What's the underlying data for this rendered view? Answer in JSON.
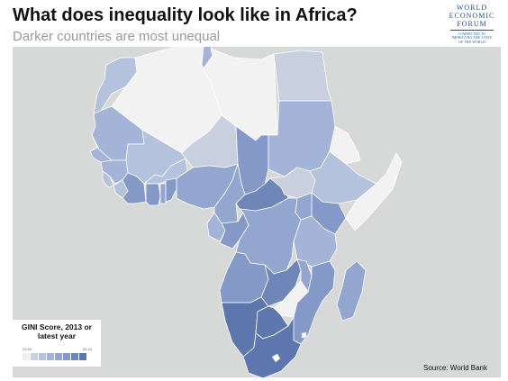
{
  "header": {
    "title": "What does inequality look like in Africa?",
    "subtitle": "Darker countries are most unequal"
  },
  "logo": {
    "line1": "WORLD",
    "line2": "ECONOMIC",
    "line3": "FORUM",
    "tagline1": "COMMITTED TO",
    "tagline2": "IMPROVING THE STATE",
    "tagline3": "OF THE WORLD"
  },
  "legend": {
    "title_line1": "GINI Score, 2013 or",
    "title_line2": "latest year",
    "min": "29.60",
    "max": "63.10",
    "colors": [
      "#eef0f5",
      "#c8d0e0",
      "#b4c2dd",
      "#a3b4d8",
      "#93a6d0",
      "#8599c9",
      "#6f86b8",
      "#5d76ad"
    ]
  },
  "source": "Source: World Bank",
  "map": {
    "ocean_color": "#d7d9d9",
    "no_data_color": "#f2f2f2",
    "regions": [
      {
        "name": "Morocco",
        "level": 2
      },
      {
        "name": "Algeria",
        "level": -1
      },
      {
        "name": "Tunisia",
        "level": 3
      },
      {
        "name": "Libya",
        "level": -1
      },
      {
        "name": "Egypt",
        "level": 1
      },
      {
        "name": "Mauritania",
        "level": 3
      },
      {
        "name": "Mali",
        "level": 2
      },
      {
        "name": "Niger",
        "level": 1
      },
      {
        "name": "Chad",
        "level": 5
      },
      {
        "name": "Sudan",
        "level": 3
      },
      {
        "name": "Senegal",
        "level": 3
      },
      {
        "name": "Guinea",
        "level": 3
      },
      {
        "name": "Sierra Leone",
        "level": 2
      },
      {
        "name": "Liberia",
        "level": 2
      },
      {
        "name": "Cote d'Ivoire",
        "level": 5
      },
      {
        "name": "Burkina Faso",
        "level": 2
      },
      {
        "name": "Ghana",
        "level": 5
      },
      {
        "name": "Togo",
        "level": 4
      },
      {
        "name": "Benin",
        "level": 5
      },
      {
        "name": "Nigeria",
        "level": 4
      },
      {
        "name": "Cameroon",
        "level": 4
      },
      {
        "name": "Central African Republic",
        "level": 6
      },
      {
        "name": "South Sudan",
        "level": 1
      },
      {
        "name": "Ethiopia",
        "level": 2
      },
      {
        "name": "Eritrea",
        "level": -1
      },
      {
        "name": "Somalia",
        "level": -1
      },
      {
        "name": "Kenya",
        "level": 5
      },
      {
        "name": "Uganda",
        "level": 4
      },
      {
        "name": "Gabon",
        "level": 3
      },
      {
        "name": "Congo",
        "level": 5
      },
      {
        "name": "DR Congo",
        "level": 4
      },
      {
        "name": "Tanzania",
        "level": 3
      },
      {
        "name": "Angola",
        "level": 5
      },
      {
        "name": "Zambia",
        "level": 6
      },
      {
        "name": "Malawi",
        "level": 4
      },
      {
        "name": "Mozambique",
        "level": 5
      },
      {
        "name": "Zimbabwe",
        "level": -1
      },
      {
        "name": "Namibia",
        "level": 7
      },
      {
        "name": "Botswana",
        "level": 7
      },
      {
        "name": "South Africa",
        "level": 7
      },
      {
        "name": "Madagascar",
        "level": 4
      }
    ]
  }
}
